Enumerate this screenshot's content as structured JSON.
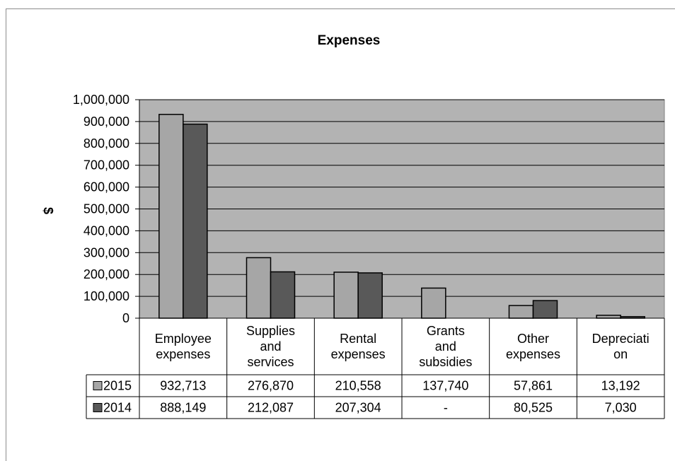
{
  "chart_data": {
    "type": "bar",
    "title": "Expenses",
    "ylabel": "$",
    "xlabel": "",
    "ylim": [
      0,
      1000000
    ],
    "y_tick_step": 100000,
    "y_tick_labels": [
      "0",
      "100,000",
      "200,000",
      "300,000",
      "400,000",
      "500,000",
      "600,000",
      "700,000",
      "800,000",
      "900,000",
      "1,000,000"
    ],
    "grid": true,
    "legend": "data-table-left",
    "categories": [
      [
        "Employee",
        "expenses"
      ],
      [
        "Supplies",
        "and",
        "services"
      ],
      [
        "Rental",
        "expenses"
      ],
      [
        "Grants",
        "and",
        "subsidies"
      ],
      [
        "Other",
        "expenses"
      ],
      [
        "Depreciati",
        "on"
      ]
    ],
    "series": [
      {
        "name": "2015",
        "color": "#a6a6a6",
        "values": [
          932713,
          276870,
          210558,
          137740,
          57861,
          13192
        ],
        "display": [
          "932,713",
          "276,870",
          "210,558",
          "137,740",
          "57,861",
          "13,192"
        ]
      },
      {
        "name": "2014",
        "color": "#595959",
        "values": [
          888149,
          212087,
          207304,
          0,
          80525,
          7030
        ],
        "display": [
          "888,149",
          "212,087",
          "207,304",
          "-",
          "80,525",
          "7,030"
        ]
      }
    ]
  },
  "colors": {
    "plot_background": "#b3b3b3",
    "bar_outline": "#000000",
    "gridline": "#000000"
  }
}
